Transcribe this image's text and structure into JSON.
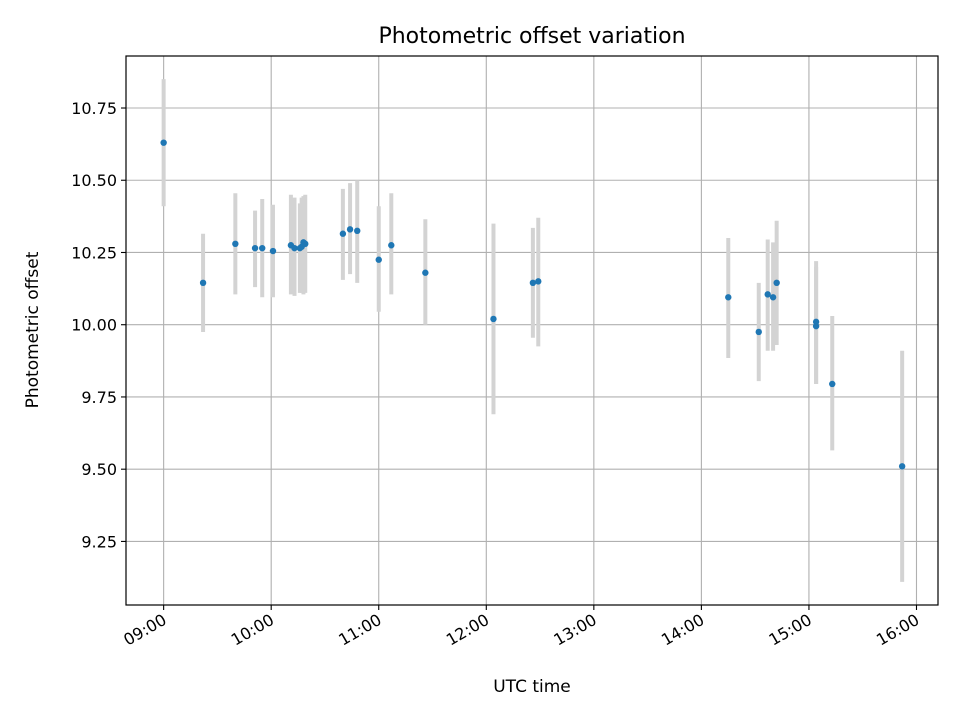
{
  "chart_data": {
    "type": "scatter",
    "title": "Photometric offset variation",
    "xlabel": "UTC time",
    "ylabel": "Photometric offset",
    "grid": true,
    "x_unit": "UTC time (HH:MM)",
    "xlim": [
      "08:39",
      "16:12"
    ],
    "ylim": [
      9.03,
      10.93
    ],
    "x_ticks": [
      "09:00",
      "10:00",
      "11:00",
      "12:00",
      "13:00",
      "14:00",
      "15:00",
      "16:00"
    ],
    "y_ticks": [
      "9.25",
      "9.50",
      "9.75",
      "10.00",
      "10.25",
      "10.50",
      "10.75"
    ],
    "marker_color": "#1f77b4",
    "errorbar_color": "#d3d3d3",
    "points": [
      {
        "x": "09:00",
        "y": 10.63,
        "ylow": 10.41,
        "yhigh": 10.85
      },
      {
        "x": "09:22",
        "y": 10.145,
        "ylow": 9.975,
        "yhigh": 10.315
      },
      {
        "x": "09:40",
        "y": 10.28,
        "ylow": 10.105,
        "yhigh": 10.455
      },
      {
        "x": "09:51",
        "y": 10.265,
        "ylow": 10.13,
        "yhigh": 10.395
      },
      {
        "x": "09:55",
        "y": 10.265,
        "ylow": 10.095,
        "yhigh": 10.435
      },
      {
        "x": "10:01",
        "y": 10.255,
        "ylow": 10.095,
        "yhigh": 10.415
      },
      {
        "x": "10:11",
        "y": 10.275,
        "ylow": 10.105,
        "yhigh": 10.45
      },
      {
        "x": "10:13",
        "y": 10.265,
        "ylow": 10.1,
        "yhigh": 10.44
      },
      {
        "x": "10:16",
        "y": 10.265,
        "ylow": 10.11,
        "yhigh": 10.42
      },
      {
        "x": "10:17",
        "y": 10.27,
        "ylow": 10.11,
        "yhigh": 10.44
      },
      {
        "x": "10:18",
        "y": 10.285,
        "ylow": 10.105,
        "yhigh": 10.445
      },
      {
        "x": "10:19",
        "y": 10.28,
        "ylow": 10.11,
        "yhigh": 10.45
      },
      {
        "x": "10:40",
        "y": 10.315,
        "ylow": 10.155,
        "yhigh": 10.47
      },
      {
        "x": "10:44",
        "y": 10.33,
        "ylow": 10.175,
        "yhigh": 10.49
      },
      {
        "x": "10:48",
        "y": 10.325,
        "ylow": 10.145,
        "yhigh": 10.5
      },
      {
        "x": "11:00",
        "y": 10.225,
        "ylow": 10.045,
        "yhigh": 10.41
      },
      {
        "x": "11:07",
        "y": 10.275,
        "ylow": 10.105,
        "yhigh": 10.455
      },
      {
        "x": "11:26",
        "y": 10.18,
        "ylow": 10.0,
        "yhigh": 10.365
      },
      {
        "x": "12:04",
        "y": 10.02,
        "ylow": 9.69,
        "yhigh": 10.35
      },
      {
        "x": "12:26",
        "y": 10.145,
        "ylow": 9.955,
        "yhigh": 10.335
      },
      {
        "x": "12:29",
        "y": 10.15,
        "ylow": 9.925,
        "yhigh": 10.37
      },
      {
        "x": "14:15",
        "y": 10.095,
        "ylow": 9.885,
        "yhigh": 10.3
      },
      {
        "x": "14:32",
        "y": 9.975,
        "ylow": 9.805,
        "yhigh": 10.145
      },
      {
        "x": "14:37",
        "y": 10.105,
        "ylow": 9.91,
        "yhigh": 10.295
      },
      {
        "x": "14:40",
        "y": 10.095,
        "ylow": 9.91,
        "yhigh": 10.285
      },
      {
        "x": "14:42",
        "y": 10.145,
        "ylow": 9.93,
        "yhigh": 10.36
      },
      {
        "x": "15:04",
        "y": 9.995,
        "ylow": 9.795,
        "yhigh": 10.2
      },
      {
        "x": "15:04",
        "y": 10.01,
        "ylow": 9.795,
        "yhigh": 10.22
      },
      {
        "x": "15:13",
        "y": 9.795,
        "ylow": 9.565,
        "yhigh": 10.03
      },
      {
        "x": "15:52",
        "y": 9.51,
        "ylow": 9.11,
        "yhigh": 9.91
      }
    ]
  }
}
